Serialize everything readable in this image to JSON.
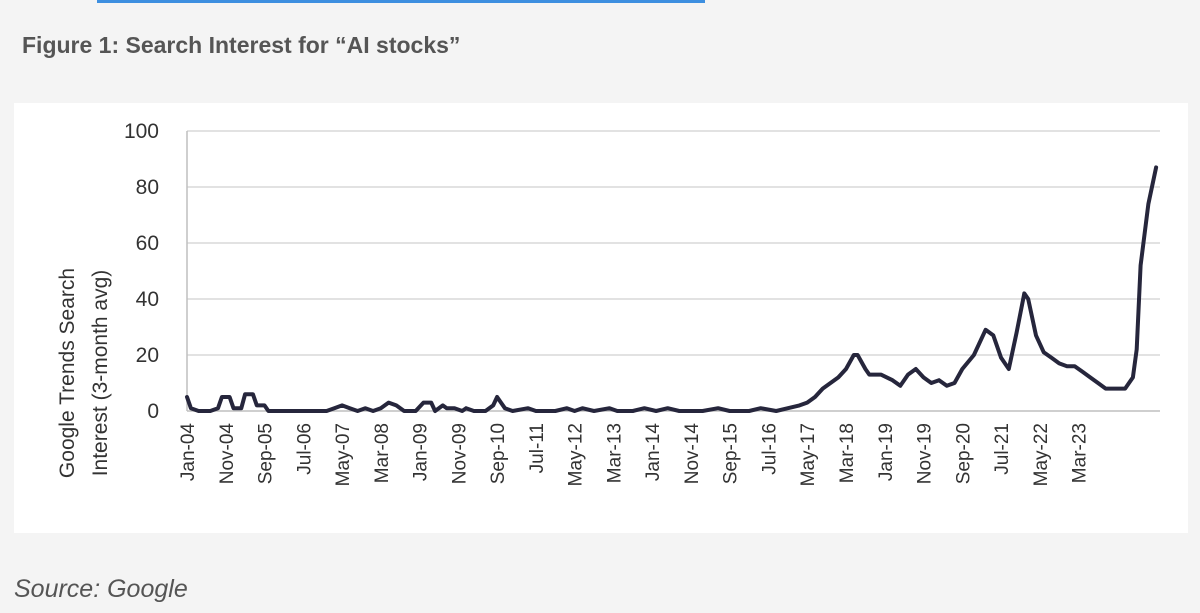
{
  "figure_title": "Figure 1: Search Interest for “AI stocks”",
  "source_text": "Source: Google",
  "colors": {
    "line": "#26263c",
    "grid": "#d9d9d9",
    "text": "#333333",
    "top_rule": "#3d8fe0"
  },
  "chart_data": {
    "type": "line",
    "title": "",
    "xlabel": "",
    "ylabel": "Google Trends Search Interest (3-month avg)",
    "ylabel_lines": [
      "Google Trends Search",
      "Interest (3-month avg)"
    ],
    "ylim": [
      0,
      100
    ],
    "yticks": [
      0,
      20,
      40,
      60,
      80,
      100
    ],
    "grid": "horizontal",
    "legend": "none",
    "xtick_labels": [
      "Jan-04",
      "Nov-04",
      "Sep-05",
      "Jul-06",
      "May-07",
      "Mar-08",
      "Jan-09",
      "Nov-09",
      "Sep-10",
      "Jul-11",
      "May-12",
      "Mar-13",
      "Jan-14",
      "Nov-14",
      "Sep-15",
      "Jul-16",
      "May-17",
      "Mar-18",
      "Jan-19",
      "Nov-19",
      "Sep-20",
      "Jul-21",
      "May-22",
      "Mar-23"
    ],
    "series": [
      {
        "points": [
          [
            "2004-01",
            5
          ],
          [
            "2004-02",
            1
          ],
          [
            "2004-04",
            0
          ],
          [
            "2004-07",
            0
          ],
          [
            "2004-09",
            1
          ],
          [
            "2004-10",
            5
          ],
          [
            "2004-12",
            5
          ],
          [
            "2005-01",
            1
          ],
          [
            "2005-03",
            1
          ],
          [
            "2005-04",
            6
          ],
          [
            "2005-06",
            6
          ],
          [
            "2005-07",
            2
          ],
          [
            "2005-09",
            2
          ],
          [
            "2005-10",
            0
          ],
          [
            "2006-06",
            0
          ],
          [
            "2007-01",
            0
          ],
          [
            "2007-03",
            1
          ],
          [
            "2007-05",
            2
          ],
          [
            "2007-07",
            1
          ],
          [
            "2007-09",
            0
          ],
          [
            "2007-11",
            1
          ],
          [
            "2008-01",
            0
          ],
          [
            "2008-03",
            1
          ],
          [
            "2008-05",
            3
          ],
          [
            "2008-07",
            2
          ],
          [
            "2008-09",
            0
          ],
          [
            "2008-12",
            0
          ],
          [
            "2009-02",
            3
          ],
          [
            "2009-04",
            3
          ],
          [
            "2009-05",
            0
          ],
          [
            "2009-07",
            2
          ],
          [
            "2009-08",
            1
          ],
          [
            "2009-10",
            1
          ],
          [
            "2009-12",
            0
          ],
          [
            "2010-01",
            1
          ],
          [
            "2010-03",
            0
          ],
          [
            "2010-06",
            0
          ],
          [
            "2010-08",
            2
          ],
          [
            "2010-09",
            5
          ],
          [
            "2010-10",
            3
          ],
          [
            "2010-11",
            1
          ],
          [
            "2011-01",
            0
          ],
          [
            "2011-05",
            1
          ],
          [
            "2011-07",
            0
          ],
          [
            "2011-12",
            0
          ],
          [
            "2012-03",
            1
          ],
          [
            "2012-05",
            0
          ],
          [
            "2012-07",
            1
          ],
          [
            "2012-10",
            0
          ],
          [
            "2013-02",
            1
          ],
          [
            "2013-04",
            0
          ],
          [
            "2013-08",
            0
          ],
          [
            "2013-11",
            1
          ],
          [
            "2014-02",
            0
          ],
          [
            "2014-05",
            1
          ],
          [
            "2014-08",
            0
          ],
          [
            "2015-02",
            0
          ],
          [
            "2015-06",
            1
          ],
          [
            "2015-09",
            0
          ],
          [
            "2016-02",
            0
          ],
          [
            "2016-05",
            1
          ],
          [
            "2016-09",
            0
          ],
          [
            "2016-12",
            1
          ],
          [
            "2017-03",
            2
          ],
          [
            "2017-05",
            3
          ],
          [
            "2017-07",
            5
          ],
          [
            "2017-09",
            8
          ],
          [
            "2017-11",
            10
          ],
          [
            "2018-01",
            12
          ],
          [
            "2018-03",
            15
          ],
          [
            "2018-05",
            20
          ],
          [
            "2018-06",
            20
          ],
          [
            "2018-08",
            15
          ],
          [
            "2018-09",
            13
          ],
          [
            "2018-12",
            13
          ],
          [
            "2019-03",
            11
          ],
          [
            "2019-05",
            9
          ],
          [
            "2019-07",
            13
          ],
          [
            "2019-09",
            15
          ],
          [
            "2019-11",
            12
          ],
          [
            "2020-01",
            10
          ],
          [
            "2020-03",
            11
          ],
          [
            "2020-05",
            9
          ],
          [
            "2020-07",
            10
          ],
          [
            "2020-09",
            15
          ],
          [
            "2020-12",
            20
          ],
          [
            "2021-03",
            29
          ],
          [
            "2021-05",
            27
          ],
          [
            "2021-07",
            19
          ],
          [
            "2021-09",
            15
          ],
          [
            "2021-11",
            28
          ],
          [
            "2022-01",
            42
          ],
          [
            "2022-02",
            40
          ],
          [
            "2022-04",
            27
          ],
          [
            "2022-06",
            21
          ],
          [
            "2022-08",
            19
          ],
          [
            "2022-10",
            17
          ],
          [
            "2022-12",
            16
          ],
          [
            "2023-02",
            16
          ],
          [
            "2023-04",
            14
          ],
          [
            "2023-06",
            12
          ],
          [
            "2023-08",
            10
          ],
          [
            "2023-10",
            8
          ],
          [
            "2024-01",
            8
          ],
          [
            "2024-03",
            8
          ],
          [
            "2024-05",
            12
          ],
          [
            "2024-06",
            22
          ],
          [
            "2024-07",
            52
          ],
          [
            "2024-09",
            74
          ],
          [
            "2024-11",
            87
          ]
        ]
      }
    ]
  }
}
